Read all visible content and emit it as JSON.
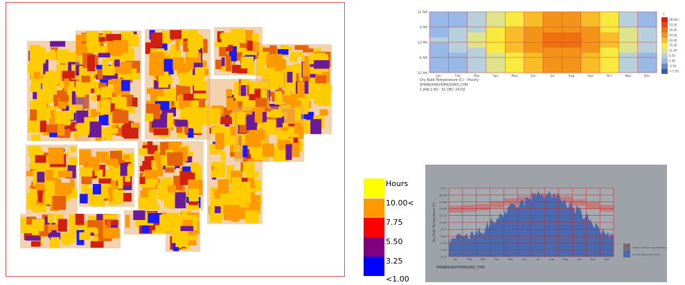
{
  "sun_hours_map": {
    "legend": {
      "title": "Hours",
      "labels": [
        "10.00<",
        "7.75",
        "5.50",
        "3.25",
        "<1.00"
      ],
      "colors": [
        "#ffff00",
        "#ff9900",
        "#ff0000",
        "#800080",
        "#0000ff"
      ]
    },
    "building_colors": [
      "#ffcc00",
      "#ff9900",
      "#e8620a",
      "#d02010",
      "#6a1a9a",
      "#1a1aff"
    ]
  },
  "chart_data": [
    {
      "type": "heatmap",
      "title": "Dry Bulb Temperature (C) - Hourly",
      "subtitle": [
        "SHANGHAI/HONGQIAO_CHN",
        "1 JAN 1:00 - 31 DEC 24:00"
      ],
      "x_ticks": [
        "Jan",
        "Feb",
        "Mar",
        "Apr",
        "May",
        "Jun",
        "Jul",
        "Aug",
        "Sep",
        "Oct",
        "Nov",
        "Dec"
      ],
      "y_ticks": [
        "12 AM",
        "6 PM",
        "12 PM",
        "6 AM",
        "12 AM"
      ],
      "legend": {
        "unit": "C",
        "labels": [
          "38.00<",
          "33.50",
          "29.00",
          "24.50",
          "20.00",
          "15.50",
          "11.00",
          "6.50",
          "2.00",
          "-2.50",
          "<-7.00"
        ],
        "colors": [
          "#e8200a",
          "#ec4a0a",
          "#f07010",
          "#f39418",
          "#f8bc28",
          "#faea40",
          "#dfe48c",
          "#b8d0dc",
          "#98b8e8",
          "#6a8ac8",
          "#3c5aa8"
        ]
      },
      "monthly_mean_day": [
        7,
        9,
        13,
        19,
        24,
        27,
        31,
        31,
        27,
        22,
        15,
        10
      ],
      "monthly_mean_night": [
        2,
        4,
        8,
        13,
        18,
        22,
        26,
        26,
        22,
        16,
        9,
        4
      ],
      "grid_color": "#d04040"
    },
    {
      "type": "area",
      "ylabel": "Dry Bulb Temperature (C)",
      "y_ticks": [
        "32.1",
        "28.38",
        "24.66",
        "20.94",
        "17.22",
        "13.49",
        "9.77",
        "6.05",
        "2.33",
        "-1.39",
        "-5.11"
      ],
      "ylim": [
        -5.11,
        32.09
      ],
      "x_ticks": [
        "Jan",
        "Feb",
        "Mar",
        "Apr",
        "May",
        "Jun",
        "Jul",
        "Aug",
        "Sep",
        "Oct",
        "Nov",
        "Dec"
      ],
      "station": "SHANGHAI/HONGQIAO_CHN",
      "series": [
        {
          "name": "Dry Bulb Temperature (Daily)",
          "color": "#4a6ab0",
          "monthly_values": [
            4.5,
            6,
            9.5,
            15.5,
            21,
            24.5,
            29,
            28.5,
            24.5,
            19,
            13,
            6.5
          ]
        },
        {
          "name": "Adaptive comfort range (Naturally ventilated)",
          "color": "#7a6a6a",
          "lower": [
            18.9,
            19.3,
            20,
            21.5,
            22.8,
            23.8,
            25.5,
            25.3,
            24,
            22.5,
            21,
            19.5
          ],
          "upper": [
            22.5,
            23,
            23.5,
            25,
            26.5,
            27.5,
            29.2,
            29,
            27.5,
            26,
            24.5,
            23
          ]
        }
      ]
    }
  ]
}
